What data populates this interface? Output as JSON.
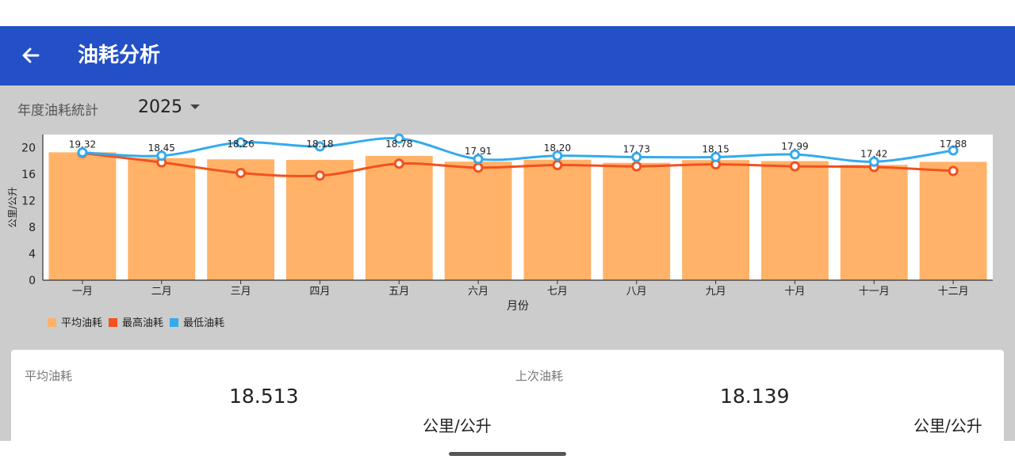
{
  "header": {
    "title": "油耗分析",
    "back_icon": "arrow-left-icon"
  },
  "filter": {
    "label": "年度油耗統計",
    "year": "2025"
  },
  "colors": {
    "appbar": "#2350c6",
    "avg": "#ffb268",
    "max": "#f4511e",
    "min": "#33aaee"
  },
  "chart_data": {
    "type": "bar",
    "categories": [
      "一月",
      "二月",
      "三月",
      "四月",
      "五月",
      "六月",
      "七月",
      "八月",
      "九月",
      "十月",
      "十一月",
      "十二月"
    ],
    "series": [
      {
        "name": "平均油耗",
        "type": "bar",
        "values": [
          19.32,
          18.45,
          18.26,
          18.18,
          18.78,
          17.91,
          18.2,
          17.73,
          18.15,
          17.99,
          17.42,
          17.88
        ],
        "labels": [
          "19.32",
          "18.45",
          "18.26",
          "18.18",
          "18.78",
          "17.91",
          "18.20",
          "17.73",
          "18.15",
          "17.99",
          "17.42",
          "17.88"
        ]
      },
      {
        "name": "最高油耗",
        "type": "line",
        "values": [
          19.2,
          17.8,
          16.2,
          15.8,
          17.6,
          17.0,
          17.4,
          17.2,
          17.5,
          17.2,
          17.1,
          16.5
        ]
      },
      {
        "name": "最低油耗",
        "type": "line",
        "values": [
          19.3,
          18.8,
          20.8,
          20.2,
          21.4,
          18.3,
          18.8,
          18.6,
          18.6,
          19.0,
          17.9,
          19.6
        ]
      }
    ],
    "xlabel": "月份",
    "ylabel": "公里/公升",
    "yticks": [
      "0",
      "4",
      "8",
      "12",
      "16",
      "20"
    ],
    "ylim": [
      0,
      22
    ],
    "legend_position": "bottom-left"
  },
  "summary": {
    "avg": {
      "label": "平均油耗",
      "value": "18.513",
      "unit": "公里/公升"
    },
    "last": {
      "label": "上次油耗",
      "value": "18.139",
      "unit": "公里/公升"
    }
  }
}
